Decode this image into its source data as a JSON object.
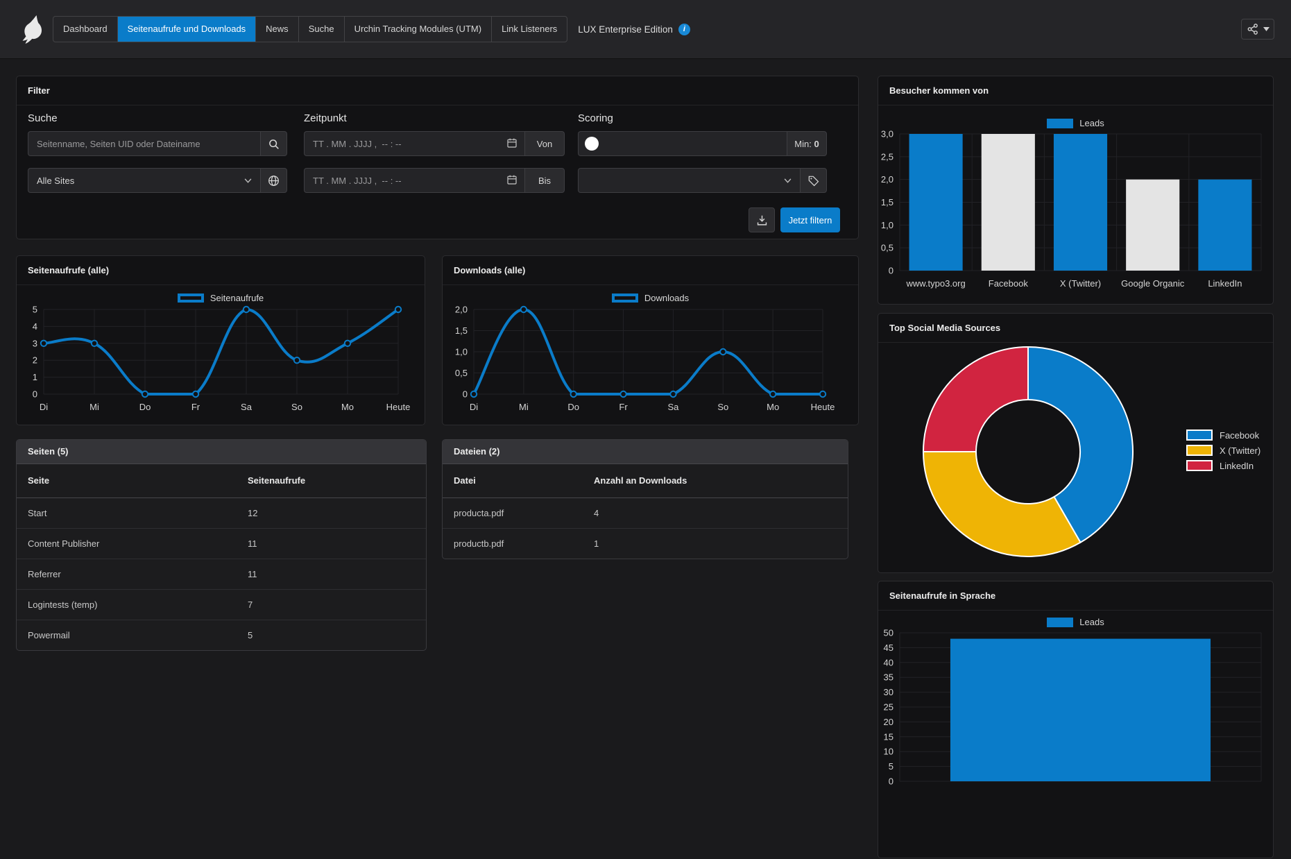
{
  "topbar": {
    "tabs": [
      {
        "label": "Dashboard",
        "active": false
      },
      {
        "label": "Seitenaufrufe und Downloads",
        "active": true
      },
      {
        "label": "News",
        "active": false
      },
      {
        "label": "Suche",
        "active": false
      },
      {
        "label": "Urchin Tracking Modules (UTM)",
        "active": false
      },
      {
        "label": "Link Listeners",
        "active": false
      }
    ],
    "edition_label": "LUX Enterprise Edition"
  },
  "filter": {
    "title": "Filter",
    "search_label": "Suche",
    "search_placeholder": "Seitenname, Seiten UID oder Dateiname",
    "sites_value": "Alle Sites",
    "time_label": "Zeitpunkt",
    "date_placeholder": "TT . MM . JJJJ ,  -- : --",
    "from_label": "Von",
    "to_label": "Bis",
    "scoring_label": "Scoring",
    "scoring_min_label": "Min:",
    "scoring_min_value": "0",
    "submit_label": "Jetzt filtern"
  },
  "tables": [
    {
      "title": "Seiten (5)",
      "columns": [
        "Seite",
        "Seitenaufrufe"
      ],
      "rows": [
        [
          "Start",
          "12"
        ],
        [
          "Content Publisher",
          "11"
        ],
        [
          "Referrer",
          "11"
        ],
        [
          "Logintests (temp)",
          "7"
        ],
        [
          "Powermail",
          "5"
        ]
      ]
    },
    {
      "title": "Dateien (2)",
      "columns": [
        "Datei",
        "Anzahl an Downloads"
      ],
      "rows": [
        [
          "producta.pdf",
          "4"
        ],
        [
          "productb.pdf",
          "1"
        ]
      ]
    }
  ],
  "colors": {
    "accent_blue": "#0a7cc9",
    "bar_white": "#e4e4e4",
    "donut_yellow": "#efb405",
    "donut_red": "#d12440"
  },
  "chart_data": [
    {
      "type": "line",
      "title": "Seitenaufrufe (alle)",
      "categories": [
        "Di",
        "Mi",
        "Do",
        "Fr",
        "Sa",
        "So",
        "Mo",
        "Heute"
      ],
      "series": [
        {
          "name": "Seitenaufrufe",
          "values": [
            3,
            3,
            0,
            0,
            5,
            2,
            3,
            5
          ]
        }
      ],
      "yticks": [
        "5",
        "4",
        "3",
        "2",
        "1",
        "0"
      ],
      "ylim": [
        0,
        5
      ],
      "grid": true,
      "legend_position": "top"
    },
    {
      "type": "line",
      "title": "Downloads (alle)",
      "categories": [
        "Di",
        "Mi",
        "Do",
        "Fr",
        "Sa",
        "So",
        "Mo",
        "Heute"
      ],
      "series": [
        {
          "name": "Downloads",
          "values": [
            0,
            2,
            0,
            0,
            0,
            1,
            0,
            0
          ]
        }
      ],
      "yticks": [
        "2,0",
        "1,5",
        "1,0",
        "0,5",
        "0"
      ],
      "ylim": [
        0,
        2
      ],
      "grid": true,
      "legend_position": "top"
    },
    {
      "type": "bar",
      "title": "Besucher kommen von",
      "categories": [
        "www.typo3.org",
        "Facebook",
        "X (Twitter)",
        "Google Organic",
        "LinkedIn"
      ],
      "series": [
        {
          "name": "Leads",
          "values": [
            3,
            3,
            3,
            2,
            2
          ]
        }
      ],
      "bar_colors": [
        "#0a7cc9",
        "#e4e4e4",
        "#0a7cc9",
        "#e4e4e4",
        "#0a7cc9"
      ],
      "yticks": [
        "3,0",
        "2,5",
        "2,0",
        "1,5",
        "1,0",
        "0,5",
        "0"
      ],
      "ylim": [
        0,
        3
      ],
      "bar_frac": 0.74,
      "grid": true,
      "legend_position": "top"
    },
    {
      "type": "bar",
      "title": "Seitenaufrufe in Sprache",
      "categories": [
        ""
      ],
      "series": [
        {
          "name": "Leads",
          "values": [
            48
          ]
        }
      ],
      "bar_colors": [
        "#0a7cc9"
      ],
      "yticks": [
        "50",
        "45",
        "40",
        "35",
        "30",
        "25",
        "20",
        "15",
        "10",
        "5",
        "0"
      ],
      "ylim": [
        0,
        50
      ],
      "bar_frac": 0.72,
      "grid": true,
      "legend_position": "top"
    },
    {
      "type": "pie",
      "donut": true,
      "title": "Top Social Media Sources",
      "labels": [
        "Facebook",
        "X (Twitter)",
        "LinkedIn"
      ],
      "values": [
        5,
        4,
        3
      ],
      "colors": [
        "#0a7cc9",
        "#efb405",
        "#d12440"
      ],
      "legend_position": "right"
    }
  ]
}
